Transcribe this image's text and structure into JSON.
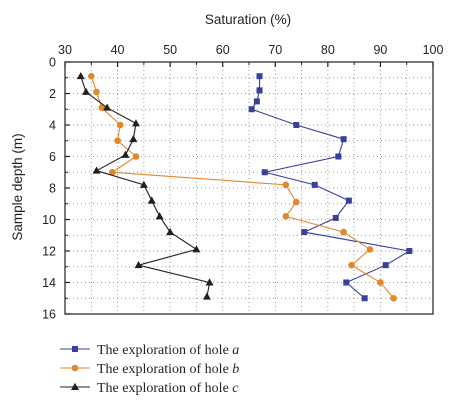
{
  "chart_data": {
    "type": "line",
    "xlabel": "Saturation (%)",
    "ylabel": "Sample depth (m)",
    "xlim": [
      30,
      100
    ],
    "ylim": [
      0,
      16
    ],
    "x_axis_position": "top",
    "y_axis_inverted": true,
    "x_ticks": [
      30,
      40,
      50,
      60,
      70,
      80,
      90,
      100
    ],
    "y_ticks": [
      0,
      2,
      4,
      6,
      8,
      10,
      12,
      14,
      16
    ],
    "grid": "dotted",
    "legend_position": "bottom-left",
    "series": [
      {
        "name": "The exploration of hole a",
        "name_prefix": "The exploration of hole ",
        "name_hole": "a",
        "color": "#3a3f9a",
        "marker": "square",
        "points": [
          [
            67,
            0.9
          ],
          [
            67,
            1.8
          ],
          [
            66.5,
            2.5
          ],
          [
            65.5,
            3.0
          ],
          [
            74,
            4.0
          ],
          [
            83,
            4.9
          ],
          [
            82,
            6.0
          ],
          [
            68,
            7.0
          ],
          [
            77.5,
            7.8
          ],
          [
            84,
            8.8
          ],
          [
            81.5,
            9.9
          ],
          [
            75.5,
            10.8
          ],
          [
            95.5,
            12.0
          ],
          [
            91,
            12.9
          ],
          [
            83.5,
            14.0
          ],
          [
            87,
            15.0
          ]
        ]
      },
      {
        "name": "The exploration of hole b",
        "name_prefix": "The exploration of hole ",
        "name_hole": "b",
        "color": "#e0882a",
        "marker": "circle",
        "points": [
          [
            35,
            0.9
          ],
          [
            36,
            1.9
          ],
          [
            37,
            2.9
          ],
          [
            40.5,
            4.0
          ],
          [
            40,
            5.0
          ],
          [
            43.5,
            6.0
          ],
          [
            39,
            7.0
          ],
          [
            72,
            7.8
          ],
          [
            74,
            8.9
          ],
          [
            72,
            9.8
          ],
          [
            83,
            10.8
          ],
          [
            88,
            11.9
          ],
          [
            84.5,
            12.9
          ],
          [
            90,
            14.0
          ],
          [
            92.5,
            15.0
          ]
        ]
      },
      {
        "name": "The exploration of hole c",
        "name_prefix": "The exploration of hole ",
        "name_hole": "c",
        "color": "#231f20",
        "marker": "triangle",
        "points": [
          [
            33,
            0.9
          ],
          [
            34,
            1.9
          ],
          [
            38,
            2.9
          ],
          [
            43.5,
            3.9
          ],
          [
            43,
            4.9
          ],
          [
            41.5,
            5.9
          ],
          [
            36,
            6.9
          ],
          [
            45,
            7.8
          ],
          [
            46.5,
            8.8
          ],
          [
            48,
            9.8
          ],
          [
            50,
            10.8
          ],
          [
            55,
            11.9
          ],
          [
            44,
            12.9
          ],
          [
            57.5,
            14.0
          ],
          [
            57,
            14.9
          ]
        ]
      }
    ]
  }
}
